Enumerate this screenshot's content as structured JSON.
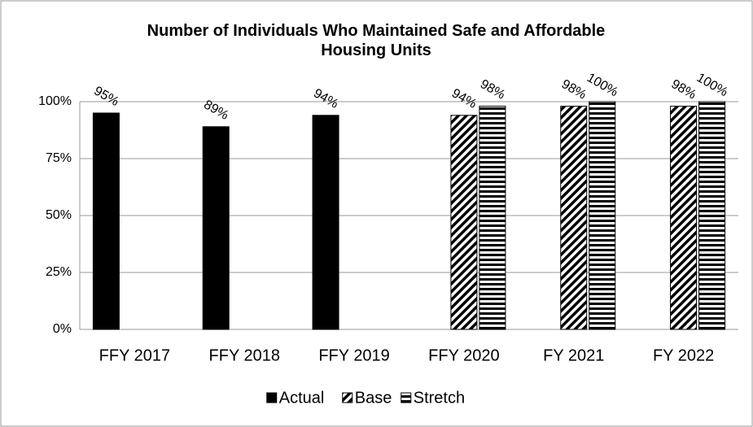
{
  "chart_data": {
    "type": "bar",
    "title": "Number of Individuals Who Maintained Safe and Affordable Housing Units",
    "categories": [
      "FFY 2017",
      "FFY 2018",
      "FFY 2019",
      "FFY 2020",
      "FY 2021",
      "FY 2022"
    ],
    "series": [
      {
        "name": "Actual",
        "color": "#000000",
        "pattern": "solid",
        "values": [
          95,
          89,
          94,
          null,
          null,
          null
        ],
        "value_labels": [
          "95%",
          "89%",
          "94%",
          null,
          null,
          null
        ]
      },
      {
        "name": "Base",
        "color": "#000000",
        "pattern": "diagonal",
        "values": [
          null,
          null,
          null,
          94,
          98,
          98
        ],
        "value_labels": [
          null,
          null,
          null,
          "94%",
          "98%",
          "98%"
        ]
      },
      {
        "name": "Stretch",
        "color": "#000000",
        "pattern": "horizontal",
        "values": [
          null,
          null,
          null,
          98,
          100,
          100
        ],
        "value_labels": [
          null,
          null,
          null,
          "98%",
          "100%",
          "100%"
        ]
      }
    ],
    "ylim": [
      0,
      100
    ],
    "yticks": [
      {
        "value": 0,
        "label": "0%"
      },
      {
        "value": 25,
        "label": "25%"
      },
      {
        "value": 50,
        "label": "50%"
      },
      {
        "value": 75,
        "label": "75%"
      },
      {
        "value": 100,
        "label": "100%"
      }
    ],
    "grid": true,
    "legend": "bottom"
  }
}
